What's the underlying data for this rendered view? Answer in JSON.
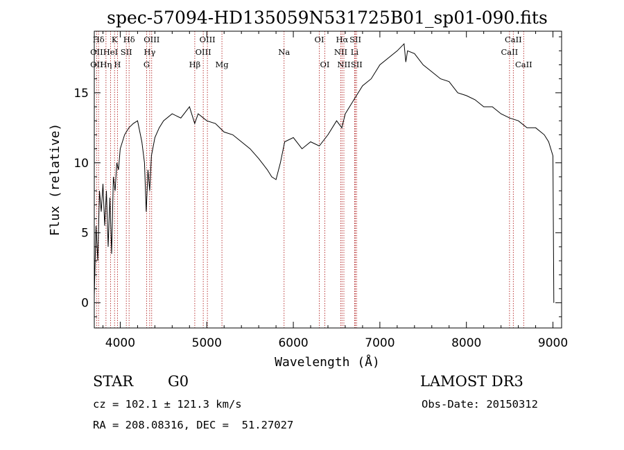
{
  "chart_data": {
    "type": "line",
    "title": "spec-57094-HD135059N531725B01_sp01-090.fits",
    "xlabel": "Wavelength (Å)",
    "ylabel": "Flux (relative)",
    "xlim": [
      3700,
      9100
    ],
    "ylim": [
      -1.8,
      19.4
    ],
    "xticks": [
      4000,
      5000,
      6000,
      7000,
      8000,
      9000
    ],
    "yticks": [
      0,
      5,
      10,
      15
    ],
    "series": [
      {
        "name": "flux",
        "x": [
          3700,
          3720,
          3740,
          3760,
          3780,
          3800,
          3820,
          3840,
          3860,
          3880,
          3900,
          3920,
          3940,
          3960,
          3980,
          4000,
          4050,
          4100,
          4150,
          4200,
          4250,
          4280,
          4300,
          4320,
          4340,
          4360,
          4400,
          4450,
          4500,
          4600,
          4700,
          4800,
          4860,
          4900,
          5000,
          5100,
          5200,
          5300,
          5400,
          5500,
          5600,
          5700,
          5750,
          5800,
          5850,
          5900,
          6000,
          6100,
          6200,
          6300,
          6400,
          6500,
          6560,
          6600,
          6650,
          6700,
          6800,
          6900,
          7000,
          7100,
          7200,
          7280,
          7300,
          7320,
          7400,
          7500,
          7600,
          7700,
          7800,
          7900,
          8000,
          8100,
          8200,
          8300,
          8400,
          8500,
          8600,
          8700,
          8800,
          8900,
          8950,
          9000,
          9010
        ],
        "y": [
          0.5,
          5.5,
          3.0,
          8.0,
          6.5,
          8.5,
          5.5,
          8.0,
          4.0,
          7.5,
          3.5,
          9.0,
          8.0,
          10.0,
          9.5,
          11.0,
          12.0,
          12.5,
          12.8,
          13.0,
          11.5,
          10.0,
          6.5,
          9.5,
          8.0,
          10.5,
          11.8,
          12.5,
          13.0,
          13.5,
          13.2,
          14.0,
          12.8,
          13.5,
          13.0,
          12.8,
          12.2,
          12.0,
          11.5,
          11.0,
          10.3,
          9.5,
          9.0,
          8.8,
          10.0,
          11.5,
          11.8,
          11.0,
          11.5,
          11.2,
          12.0,
          13.0,
          12.5,
          13.5,
          14.0,
          14.5,
          15.5,
          16.0,
          17.0,
          17.5,
          18.0,
          18.5,
          17.2,
          18.0,
          17.8,
          17.0,
          16.5,
          16.0,
          15.8,
          15.0,
          14.8,
          14.5,
          14.0,
          14.0,
          13.5,
          13.2,
          13.0,
          12.5,
          12.5,
          12.0,
          11.5,
          10.5,
          0.0
        ]
      }
    ],
    "line_markers": [
      {
        "label": "Hδ",
        "x": 3750,
        "row": 0
      },
      {
        "label": "K",
        "x": 3934,
        "row": 0
      },
      {
        "label": "Hδ",
        "x": 4102,
        "row": 0
      },
      {
        "label": "OIII",
        "x": 4363,
        "row": 0
      },
      {
        "label": "OIII",
        "x": 5007,
        "row": 0
      },
      {
        "label": "OI",
        "x": 6300,
        "row": 0
      },
      {
        "label": "Hα",
        "x": 6563,
        "row": 0
      },
      {
        "label": "SII",
        "x": 6717,
        "row": 0
      },
      {
        "label": "CaII",
        "x": 8542,
        "row": 0
      },
      {
        "label": "OII",
        "x": 3727,
        "row": 1
      },
      {
        "label": "HeI",
        "x": 3888,
        "row": 1
      },
      {
        "label": "SII",
        "x": 4070,
        "row": 1
      },
      {
        "label": "Hγ",
        "x": 4340,
        "row": 1
      },
      {
        "label": "OIII",
        "x": 4959,
        "row": 1
      },
      {
        "label": "Na",
        "x": 5893,
        "row": 1
      },
      {
        "label": "NII",
        "x": 6548,
        "row": 1
      },
      {
        "label": "Li",
        "x": 6708,
        "row": 1
      },
      {
        "label": "CaII",
        "x": 8498,
        "row": 1
      },
      {
        "label": "OII",
        "x": 3727,
        "row": 2
      },
      {
        "label": "Hη",
        "x": 3835,
        "row": 2
      },
      {
        "label": "H",
        "x": 3968,
        "row": 2
      },
      {
        "label": "G",
        "x": 4305,
        "row": 2
      },
      {
        "label": "Hβ",
        "x": 4861,
        "row": 2
      },
      {
        "label": "Mg",
        "x": 5175,
        "row": 2
      },
      {
        "label": "OI",
        "x": 6364,
        "row": 2
      },
      {
        "label": "NII",
        "x": 6584,
        "row": 2
      },
      {
        "label": "SII",
        "x": 6731,
        "row": 2
      },
      {
        "label": "CaII",
        "x": 8662,
        "row": 2
      }
    ]
  },
  "info": {
    "class": "STAR",
    "subclass": "G0",
    "survey": "LAMOST DR3",
    "cz": "cz = 102.1 ± 121.3 km/s",
    "obs_date": "Obs-Date: 20150312",
    "coords": "RA = 208.08316, DEC =  51.27027"
  },
  "colors": {
    "line": "#000000",
    "marker": "#b22222",
    "background": "#ffffff"
  }
}
